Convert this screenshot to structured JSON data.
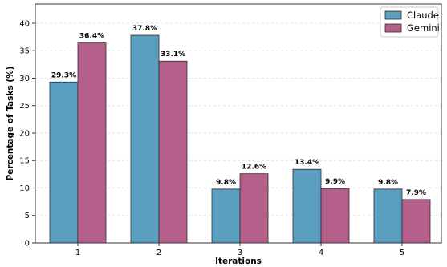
{
  "chart_data": {
    "type": "bar",
    "categories": [
      "1",
      "2",
      "3",
      "4",
      "5"
    ],
    "series": [
      {
        "name": "Claude",
        "values": [
          29.3,
          37.8,
          9.8,
          13.4,
          9.8
        ],
        "labels": [
          "29.3%",
          "37.8%",
          "9.8%",
          "13.4%",
          "9.8%"
        ],
        "color": "#5a9fbf"
      },
      {
        "name": "Gemini",
        "values": [
          36.4,
          33.1,
          12.6,
          9.9,
          7.9
        ],
        "labels": [
          "36.4%",
          "33.1%",
          "12.6%",
          "9.9%",
          "7.9%"
        ],
        "color": "#b5608a"
      }
    ],
    "xlabel": "Iterations",
    "ylabel": "Percentage of Tasks (%)",
    "ylim": [
      0,
      43.5
    ],
    "yticks": [
      0,
      5,
      10,
      15,
      20,
      25,
      30,
      35,
      40
    ],
    "grid": "horizontal dashed",
    "legend": "top-right"
  }
}
